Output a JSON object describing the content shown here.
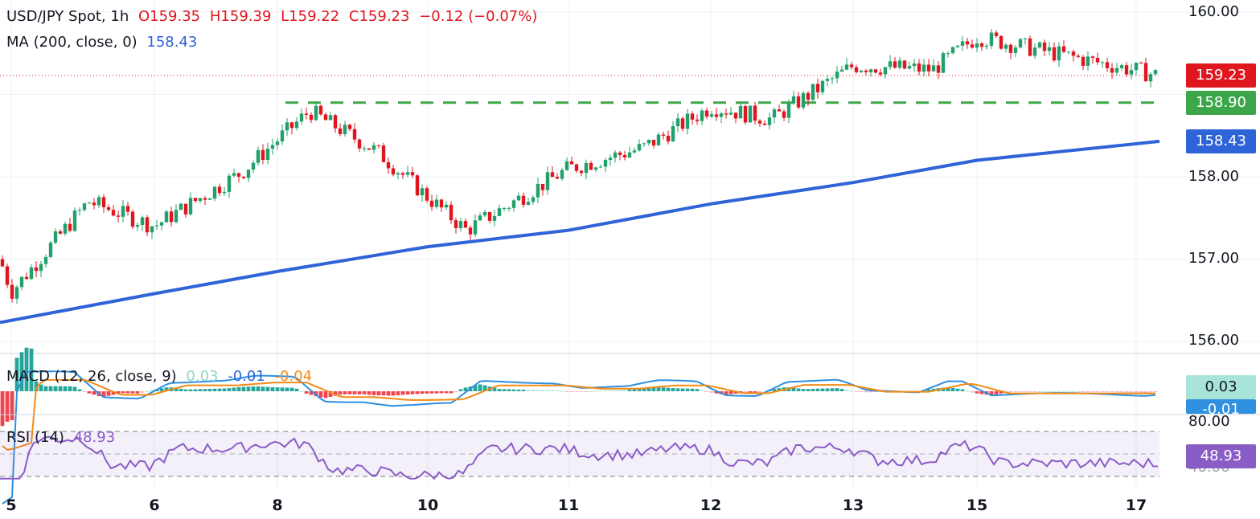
{
  "header": {
    "symbol": "USD/JPY Spot, 1h",
    "open": "O159.35",
    "high": "H159.39",
    "low": "L159.22",
    "close": "C159.23",
    "change": "−0.12 (−0.07%)"
  },
  "ma_legend": {
    "label": "MA (200, close, 0)",
    "value": "158.43"
  },
  "macd_legend": {
    "label": "MACD (12, 26, close, 9)",
    "hist": "0.03",
    "macd": "-0.01",
    "signal": "-0.04"
  },
  "rsi_legend": {
    "label": "RSI (14)",
    "value": "48.93"
  },
  "price_tags": {
    "last": "159.23",
    "support": "158.90",
    "ma": "158.43",
    "macd_hist": "0.03",
    "macd_line": "-0.01",
    "rsi": "48.93"
  },
  "yaxis": {
    "labels": [
      "160.00",
      "158.00",
      "157.00",
      "156.00"
    ],
    "rsi_upper": "80.00",
    "rsi_lower": "40.00"
  },
  "xaxis": {
    "labels": [
      "5",
      "6",
      "8",
      "10",
      "11",
      "12",
      "13",
      "15",
      "17"
    ]
  },
  "colors": {
    "up": "#22a06b",
    "down": "#e0161f",
    "ma": "#2f63d8",
    "support": "#3ea64a",
    "macd": "#2f8fe0",
    "signal": "#f28a16",
    "rsi": "#8a5cc6"
  },
  "chart_data": {
    "type": "candlestick",
    "timeframe": "1h",
    "ylim": [
      156.0,
      160.0
    ],
    "support_level": 158.9,
    "last_price": 159.23,
    "ma200": {
      "name": "MA (200, close, 0)",
      "x_day": [
        "5",
        "6",
        "8",
        "10",
        "11",
        "12",
        "13",
        "15",
        "17"
      ],
      "values": [
        156.23,
        156.58,
        156.85,
        157.15,
        157.35,
        157.67,
        157.93,
        158.2,
        158.43
      ]
    },
    "close_path": {
      "x_day": [
        "5",
        "5",
        "6",
        "6",
        "8",
        "8",
        "10",
        "10",
        "11",
        "11",
        "12",
        "12",
        "13",
        "13",
        "15",
        "15",
        "17"
      ],
      "values": [
        157.0,
        156.6,
        157.7,
        157.4,
        158.05,
        158.8,
        158.3,
        157.75,
        157.35,
        158.1,
        158.35,
        158.85,
        158.7,
        159.35,
        159.3,
        159.7,
        159.23
      ]
    },
    "macd": {
      "hist": 0.03,
      "macd": -0.01,
      "signal": -0.04
    },
    "rsi": {
      "value": 48.93,
      "upper_band": 80,
      "lower_band": 40
    }
  }
}
